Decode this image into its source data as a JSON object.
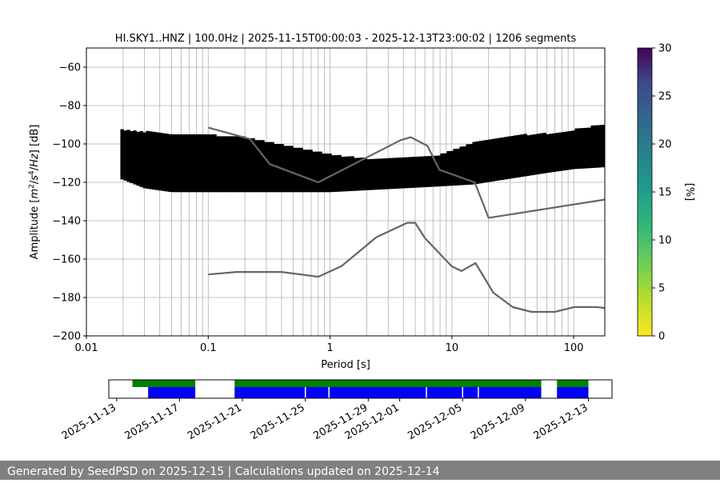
{
  "chart_data": [
    {
      "type": "heatmap",
      "title": "HI.SKY1..HNZ | 100.0Hz | 2025-11-15T00:00:03 - 2025-12-13T23:00:02 | 1206 segments",
      "xlabel": "Period [s]",
      "ylabel_parts": [
        "Amplitude [",
        "m",
        "2",
        "/",
        "s",
        "4",
        "/",
        "Hz",
        "] [dB]"
      ],
      "x_scale": "log",
      "xlim": [
        0.01,
        180
      ],
      "ylim": [
        -200,
        -50
      ],
      "x_ticks": [
        0.01,
        0.1,
        1,
        10,
        100
      ],
      "x_tick_labels": [
        "0.01",
        "0.1",
        "1",
        "10",
        "100"
      ],
      "y_ticks": [
        -200,
        -180,
        -160,
        -140,
        -120,
        -100,
        -80,
        -60
      ],
      "y_tick_labels": [
        "−200",
        "−180",
        "−160",
        "−140",
        "−120",
        "−100",
        "−80",
        "−60"
      ],
      "grid": true,
      "colormap": "viridis_r",
      "colorbar": {
        "label": "[%]",
        "range": [
          0,
          30
        ],
        "ticks": [
          0,
          5,
          10,
          15,
          20,
          25,
          30
        ],
        "tick_labels": [
          "0",
          "5",
          "10",
          "15",
          "20",
          "25",
          "30"
        ]
      },
      "density_ridge": {
        "description_units": "period [s] vs dB of the most probable PSD level",
        "period": [
          0.019,
          0.03,
          0.05,
          0.08,
          0.12,
          0.2,
          0.35,
          0.6,
          1.0,
          2.0,
          4.0,
          8.0,
          15,
          30,
          60,
          100,
          180
        ],
        "db": [
          -106,
          -110,
          -113,
          -116,
          -119,
          -121,
          -122,
          -123,
          -123,
          -122,
          -121,
          -121,
          -119,
          -116,
          -114,
          -112,
          -110
        ],
        "upper_db": [
          -93,
          -94,
          -95,
          -95,
          -96,
          -97,
          -100,
          -103,
          -106,
          -108,
          -107,
          -106,
          -100,
          -96,
          -95,
          -93,
          -90
        ],
        "lower_db": [
          -118,
          -123,
          -125,
          -125,
          -125,
          -125,
          -125,
          -125,
          -125,
          -124,
          -123,
          -122,
          -121,
          -118,
          -115,
          -113,
          -112
        ]
      },
      "series": [
        {
          "name": "NHNM",
          "color": "#666666",
          "x": [
            0.1,
            0.22,
            0.32,
            0.8,
            3.8,
            4.6,
            6.3,
            7.9,
            15.4,
            20,
            180
          ],
          "y": [
            -91.5,
            -97.4,
            -110.5,
            -120,
            -98,
            -96.5,
            -101,
            -113.5,
            -120,
            -138.5,
            -129
          ]
        },
        {
          "name": "NLNM",
          "color": "#666666",
          "x": [
            0.1,
            0.17,
            0.4,
            0.8,
            1.24,
            2.4,
            4.3,
            5.0,
            6.0,
            10,
            12,
            15.6,
            21.9,
            31.6,
            45,
            70,
            101,
            154,
            180
          ],
          "y": [
            -168,
            -166.7,
            -166.7,
            -169.2,
            -163.7,
            -148.6,
            -141.1,
            -141.1,
            -149,
            -163.8,
            -166.2,
            -162.1,
            -177.5,
            -185,
            -187.5,
            -187.5,
            -185,
            -185,
            -185.5
          ]
        }
      ]
    },
    {
      "type": "timeline",
      "x_tick_labels": [
        "2025-11-13",
        "2025-11-17",
        "2025-11-21",
        "2025-11-25",
        "2025-11-29",
        "2025-12-01",
        "2025-12-05",
        "2025-12-09",
        "2025-12-13"
      ],
      "x_ticks": [
        "2025-11-13",
        "2025-11-17",
        "2025-11-21",
        "2025-11-25",
        "2025-11-29",
        "2025-12-01",
        "2025-12-05",
        "2025-12-09",
        "2025-12-13"
      ],
      "xlim": [
        "2025-11-12.5",
        "2025-12-14.5"
      ],
      "colors": {
        "used": "#008000",
        "available": "#0000ff",
        "gap": "#ffffff"
      },
      "green_segments": [
        [
          "2025-11-14",
          "2025-11-18"
        ],
        [
          "2025-11-20.5",
          "2025-12-10"
        ],
        [
          "2025-12-11",
          "2025-12-13"
        ]
      ],
      "blue_segments": [
        [
          "2025-11-15",
          "2025-11-18"
        ],
        [
          "2025-11-20.5",
          "2025-12-10"
        ],
        [
          "2025-12-11",
          "2025-12-13"
        ]
      ],
      "blue_gaps": [
        "2025-11-25",
        "2025-11-26.5",
        "2025-12-02.7",
        "2025-12-05",
        "2025-12-06"
      ]
    }
  ],
  "footer": {
    "text": "Generated by SeedPSD on 2025-12-15 | Calculations updated on 2025-12-14"
  }
}
